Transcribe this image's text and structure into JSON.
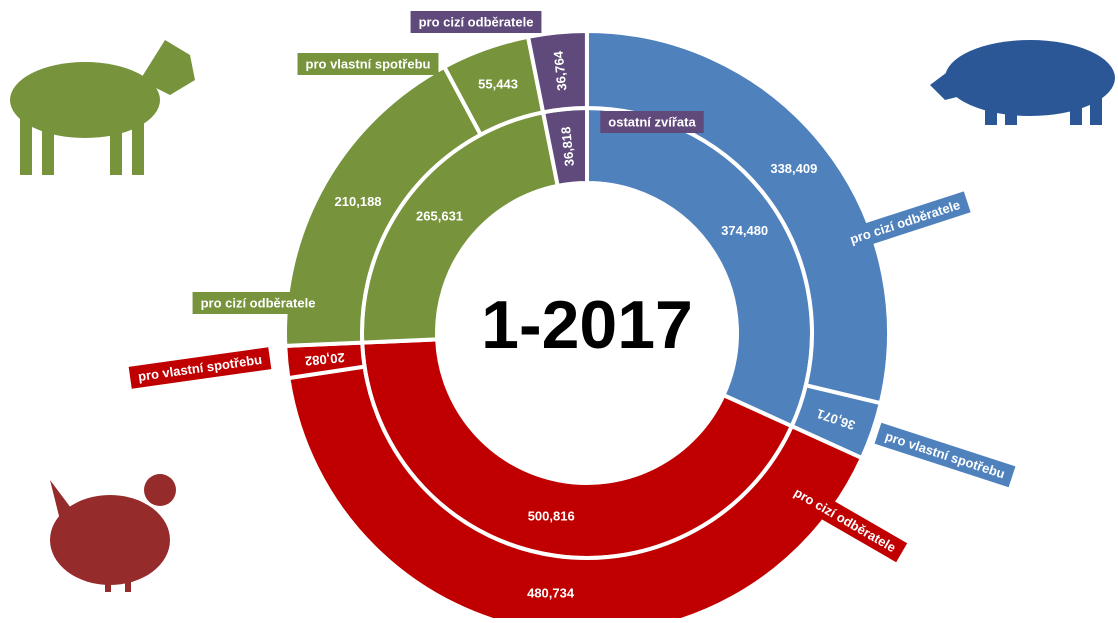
{
  "chart_data": {
    "type": "sunburst",
    "center_label": "1-2017",
    "groups": [
      {
        "color": "#4f81bd",
        "value": 374480,
        "value_label": "374,480",
        "segments": [
          {
            "name": "pro cizí odběratele",
            "value": 338409,
            "value_label": "338,409"
          },
          {
            "name": "pro vlastní spotřebu",
            "value": 36071,
            "value_label": "36,071"
          }
        ]
      },
      {
        "color": "#c00000",
        "value": 500816,
        "value_label": "500,816",
        "segments": [
          {
            "name": "pro cizí odběratele",
            "value": 480734,
            "value_label": "480,734"
          },
          {
            "name": "pro vlastní spotřebu",
            "value": 20082,
            "value_label": "20,082"
          }
        ]
      },
      {
        "color": "#77933c",
        "value": 265631,
        "value_label": "265,631",
        "segments": [
          {
            "name": "pro cizí odběratele",
            "value": 210188,
            "value_label": "210,188"
          },
          {
            "name": "pro vlastní spotřebu",
            "value": 55443,
            "value_label": "55,443"
          }
        ]
      },
      {
        "color": "#604a7b",
        "name": "ostatní zvířata",
        "value": 36818,
        "value_label": "36,818",
        "segments": [
          {
            "name": "pro cizí odběratele",
            "value": 36764,
            "value_label": "36,764"
          }
        ]
      }
    ]
  }
}
